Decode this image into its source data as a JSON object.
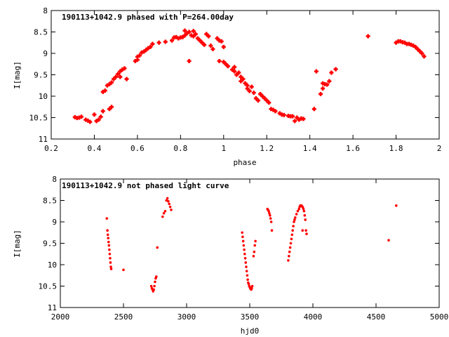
{
  "colors": {
    "points": "#ff0000",
    "axes": "#000000",
    "background": "#ffffff"
  },
  "chart_data": [
    {
      "type": "scatter",
      "title": "190113+1042.9 phased with P=264.00day",
      "xlabel": "phase",
      "ylabel": "I[mag]",
      "xlim": [
        0.2,
        2
      ],
      "ylim": [
        11,
        8
      ],
      "y_inverted": true,
      "xticks": [
        "0.2",
        "0.4",
        "0.6",
        "0.8",
        "1",
        "1.2",
        "1.4",
        "1.6",
        "1.8",
        "2"
      ],
      "yticks": [
        "8",
        "8.5",
        "9",
        "9.5",
        "10",
        "10.5",
        "11"
      ],
      "marker": "cross",
      "points": [
        [
          0.31,
          10.49
        ],
        [
          0.32,
          10.51
        ],
        [
          0.33,
          10.5
        ],
        [
          0.34,
          10.48
        ],
        [
          0.36,
          10.55
        ],
        [
          0.37,
          10.57
        ],
        [
          0.38,
          10.6
        ],
        [
          0.4,
          10.43
        ],
        [
          0.41,
          10.58
        ],
        [
          0.42,
          10.55
        ],
        [
          0.43,
          10.48
        ],
        [
          0.44,
          10.35
        ],
        [
          0.44,
          9.9
        ],
        [
          0.45,
          9.87
        ],
        [
          0.46,
          9.75
        ],
        [
          0.47,
          9.72
        ],
        [
          0.47,
          10.3
        ],
        [
          0.48,
          9.68
        ],
        [
          0.48,
          10.25
        ],
        [
          0.49,
          9.6
        ],
        [
          0.5,
          9.55
        ],
        [
          0.51,
          9.48
        ],
        [
          0.52,
          9.42
        ],
        [
          0.52,
          9.55
        ],
        [
          0.53,
          9.38
        ],
        [
          0.54,
          9.35
        ],
        [
          0.55,
          9.6
        ],
        [
          0.59,
          9.18
        ],
        [
          0.6,
          9.15
        ],
        [
          0.6,
          9.08
        ],
        [
          0.61,
          9.05
        ],
        [
          0.62,
          8.98
        ],
        [
          0.63,
          8.96
        ],
        [
          0.64,
          8.92
        ],
        [
          0.65,
          8.88
        ],
        [
          0.66,
          8.85
        ],
        [
          0.67,
          8.78
        ],
        [
          0.7,
          8.75
        ],
        [
          0.73,
          8.73
        ],
        [
          0.76,
          8.7
        ],
        [
          0.77,
          8.63
        ],
        [
          0.78,
          8.62
        ],
        [
          0.79,
          8.65
        ],
        [
          0.8,
          8.63
        ],
        [
          0.81,
          8.62
        ],
        [
          0.82,
          8.58
        ],
        [
          0.82,
          8.47
        ],
        [
          0.83,
          8.53
        ],
        [
          0.84,
          8.5
        ],
        [
          0.84,
          9.18
        ],
        [
          0.85,
          8.58
        ],
        [
          0.86,
          8.6
        ],
        [
          0.86,
          8.48
        ],
        [
          0.87,
          8.55
        ],
        [
          0.88,
          8.65
        ],
        [
          0.89,
          8.7
        ],
        [
          0.9,
          8.75
        ],
        [
          0.91,
          8.8
        ],
        [
          0.92,
          8.55
        ],
        [
          0.93,
          8.6
        ],
        [
          0.94,
          8.82
        ],
        [
          0.95,
          8.9
        ],
        [
          0.97,
          8.65
        ],
        [
          0.98,
          8.7
        ],
        [
          0.99,
          8.72
        ],
        [
          0.98,
          9.18
        ],
        [
          1.0,
          8.85
        ],
        [
          1.0,
          9.2
        ],
        [
          1.01,
          9.25
        ],
        [
          1.02,
          9.3
        ],
        [
          1.04,
          9.38
        ],
        [
          1.05,
          9.32
        ],
        [
          1.05,
          9.42
        ],
        [
          1.06,
          9.5
        ],
        [
          1.07,
          9.45
        ],
        [
          1.08,
          9.55
        ],
        [
          1.08,
          9.65
        ],
        [
          1.09,
          9.6
        ],
        [
          1.1,
          9.7
        ],
        [
          1.11,
          9.75
        ],
        [
          1.11,
          9.82
        ],
        [
          1.12,
          9.88
        ],
        [
          1.13,
          9.78
        ],
        [
          1.14,
          9.92
        ],
        [
          1.15,
          10.05
        ],
        [
          1.16,
          10.1
        ],
        [
          1.17,
          9.95
        ],
        [
          1.18,
          10.0
        ],
        [
          1.19,
          10.05
        ],
        [
          1.2,
          10.1
        ],
        [
          1.21,
          10.15
        ],
        [
          1.22,
          10.3
        ],
        [
          1.23,
          10.32
        ],
        [
          1.24,
          10.35
        ],
        [
          1.26,
          10.4
        ],
        [
          1.27,
          10.43
        ],
        [
          1.28,
          10.44
        ],
        [
          1.3,
          10.46
        ],
        [
          1.31,
          10.47
        ],
        [
          1.32,
          10.47
        ],
        [
          1.33,
          10.58
        ],
        [
          1.34,
          10.5
        ],
        [
          1.35,
          10.55
        ],
        [
          1.36,
          10.52
        ],
        [
          1.37,
          10.53
        ],
        [
          1.42,
          10.3
        ],
        [
          1.43,
          9.42
        ],
        [
          1.45,
          9.95
        ],
        [
          1.46,
          9.7
        ],
        [
          1.46,
          9.82
        ],
        [
          1.47,
          9.72
        ],
        [
          1.48,
          9.73
        ],
        [
          1.49,
          9.65
        ],
        [
          1.5,
          9.45
        ],
        [
          1.52,
          9.37
        ],
        [
          1.67,
          8.6
        ],
        [
          1.8,
          8.75
        ],
        [
          1.81,
          8.72
        ],
        [
          1.82,
          8.72
        ],
        [
          1.83,
          8.74
        ],
        [
          1.84,
          8.75
        ],
        [
          1.85,
          8.78
        ],
        [
          1.86,
          8.78
        ],
        [
          1.87,
          8.8
        ],
        [
          1.88,
          8.82
        ],
        [
          1.89,
          8.85
        ],
        [
          1.9,
          8.9
        ],
        [
          1.91,
          8.95
        ],
        [
          1.92,
          9.0
        ],
        [
          1.93,
          9.07
        ]
      ]
    },
    {
      "type": "scatter",
      "title": "190113+1042.9 not phased light curve",
      "xlabel": "hjd0",
      "ylabel": "I[mag]",
      "xlim": [
        2000,
        5000
      ],
      "ylim": [
        11,
        8
      ],
      "y_inverted": true,
      "xticks": [
        "2000",
        "2500",
        "3000",
        "3500",
        "4000",
        "4500",
        "5000"
      ],
      "yticks": [
        "8",
        "8.5",
        "9",
        "9.5",
        "10",
        "10.5",
        "11"
      ],
      "marker": "dot",
      "points": [
        [
          2368,
          8.92
        ],
        [
          2373,
          9.2
        ],
        [
          2376,
          9.3
        ],
        [
          2379,
          9.38
        ],
        [
          2382,
          9.47
        ],
        [
          2385,
          9.55
        ],
        [
          2388,
          9.65
        ],
        [
          2391,
          9.75
        ],
        [
          2394,
          9.85
        ],
        [
          2397,
          9.95
        ],
        [
          2400,
          10.05
        ],
        [
          2403,
          10.1
        ],
        [
          2500,
          10.12
        ],
        [
          2720,
          10.5
        ],
        [
          2725,
          10.55
        ],
        [
          2730,
          10.58
        ],
        [
          2735,
          10.62
        ],
        [
          2740,
          10.58
        ],
        [
          2745,
          10.5
        ],
        [
          2750,
          10.4
        ],
        [
          2755,
          10.32
        ],
        [
          2760,
          10.28
        ],
        [
          2768,
          9.6
        ],
        [
          2810,
          8.88
        ],
        [
          2820,
          8.8
        ],
        [
          2830,
          8.75
        ],
        [
          2840,
          8.5
        ],
        [
          2848,
          8.45
        ],
        [
          2855,
          8.52
        ],
        [
          2862,
          8.58
        ],
        [
          2870,
          8.65
        ],
        [
          2878,
          8.72
        ],
        [
          3440,
          9.25
        ],
        [
          3444,
          9.35
        ],
        [
          3448,
          9.45
        ],
        [
          3452,
          9.55
        ],
        [
          3456,
          9.65
        ],
        [
          3460,
          9.75
        ],
        [
          3464,
          9.85
        ],
        [
          3468,
          9.95
        ],
        [
          3472,
          10.05
        ],
        [
          3476,
          10.15
        ],
        [
          3480,
          10.25
        ],
        [
          3484,
          10.35
        ],
        [
          3488,
          10.42
        ],
        [
          3492,
          10.45
        ],
        [
          3496,
          10.5
        ],
        [
          3500,
          10.52
        ],
        [
          3504,
          10.55
        ],
        [
          3508,
          10.57
        ],
        [
          3512,
          10.58
        ],
        [
          3516,
          10.55
        ],
        [
          3520,
          10.5
        ],
        [
          3530,
          9.8
        ],
        [
          3535,
          9.7
        ],
        [
          3540,
          9.55
        ],
        [
          3545,
          9.45
        ],
        [
          3640,
          8.7
        ],
        [
          3645,
          8.72
        ],
        [
          3650,
          8.75
        ],
        [
          3655,
          8.8
        ],
        [
          3660,
          8.85
        ],
        [
          3665,
          8.92
        ],
        [
          3670,
          9.0
        ],
        [
          3675,
          9.2
        ],
        [
          3805,
          9.9
        ],
        [
          3810,
          9.8
        ],
        [
          3815,
          9.7
        ],
        [
          3820,
          9.6
        ],
        [
          3825,
          9.5
        ],
        [
          3830,
          9.4
        ],
        [
          3835,
          9.3
        ],
        [
          3840,
          9.2
        ],
        [
          3845,
          9.1
        ],
        [
          3850,
          9.0
        ],
        [
          3855,
          8.95
        ],
        [
          3860,
          8.9
        ],
        [
          3870,
          8.82
        ],
        [
          3880,
          8.75
        ],
        [
          3890,
          8.7
        ],
        [
          3895,
          8.65
        ],
        [
          3900,
          8.62
        ],
        [
          3905,
          8.62
        ],
        [
          3910,
          8.62
        ],
        [
          3915,
          8.64
        ],
        [
          3918,
          9.2
        ],
        [
          3920,
          8.66
        ],
        [
          3925,
          8.7
        ],
        [
          3930,
          8.75
        ],
        [
          3935,
          8.85
        ],
        [
          3940,
          8.95
        ],
        [
          3945,
          9.2
        ],
        [
          3950,
          9.28
        ],
        [
          4600,
          9.43
        ],
        [
          4660,
          8.62
        ]
      ]
    }
  ]
}
